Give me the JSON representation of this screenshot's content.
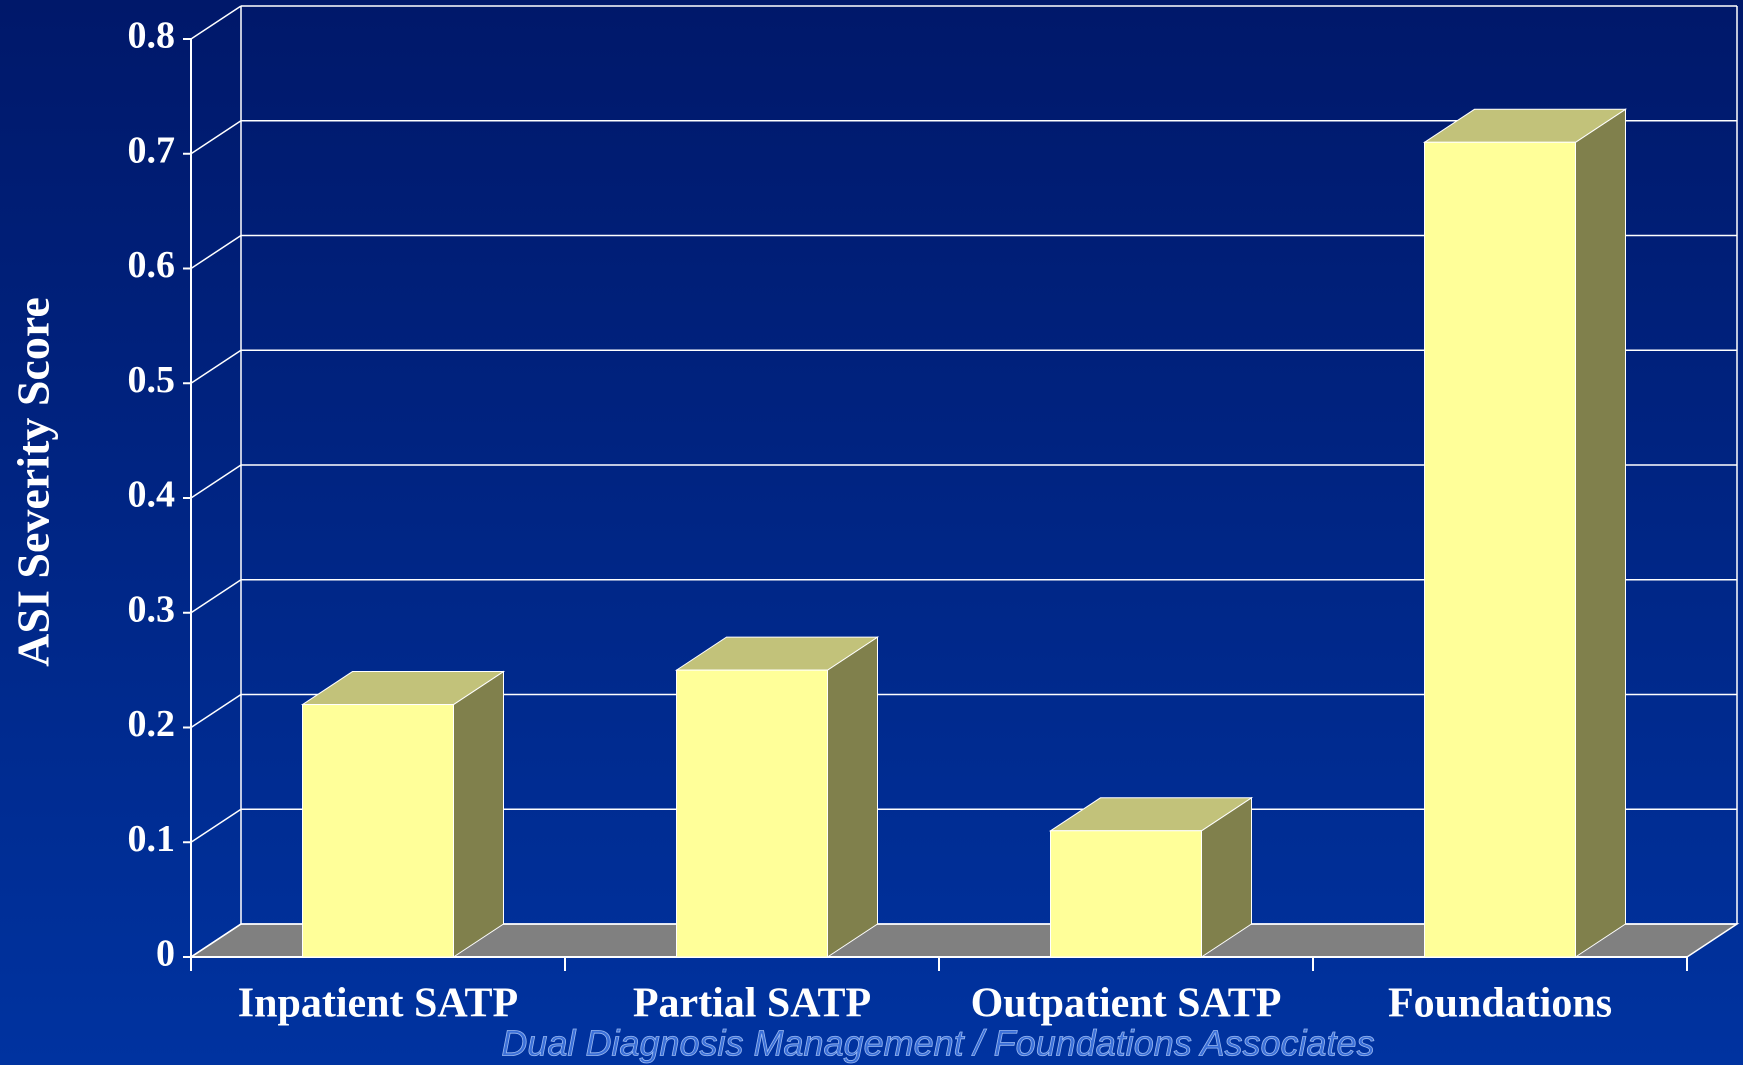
{
  "chart_data": {
    "type": "bar3d",
    "y_label": "ASI Severity Score",
    "categories": [
      "Inpatient SATP",
      "Partial SATP",
      "Outpatient SATP",
      "Foundations"
    ],
    "values": [
      0.22,
      0.25,
      0.11,
      0.71
    ],
    "color": "#ffff99",
    "ylim": [
      0,
      0.8
    ],
    "yticks": [
      0,
      0.1,
      0.2,
      0.3,
      0.4,
      0.5,
      0.6,
      0.7,
      0.8
    ],
    "grid": true,
    "footer": "Dual Diagnosis Management / Foundations Associates"
  }
}
